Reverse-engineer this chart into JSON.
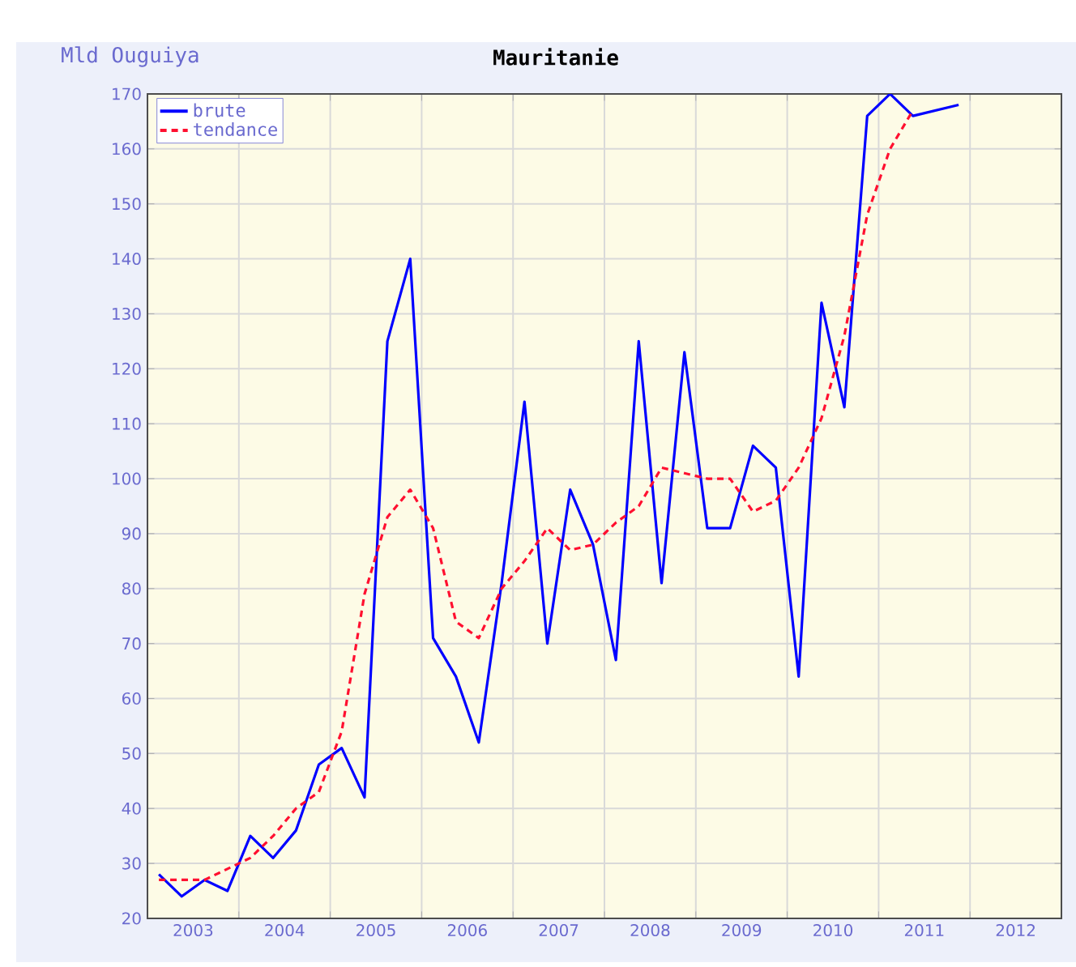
{
  "chart_data": {
    "type": "line",
    "title": "Mauritanie",
    "ylabel": "Mld Ouguiya",
    "x": [
      2003.125,
      2003.375,
      2003.625,
      2003.875,
      2004.125,
      2004.375,
      2004.625,
      2004.875,
      2005.125,
      2005.375,
      2005.625,
      2005.875,
      2006.125,
      2006.375,
      2006.625,
      2006.875,
      2007.125,
      2007.375,
      2007.625,
      2007.875,
      2008.125,
      2008.375,
      2008.625,
      2008.875,
      2009.125,
      2009.375,
      2009.625,
      2009.875,
      2010.125,
      2010.375,
      2010.625,
      2010.875,
      2011.125,
      2011.375,
      2011.625,
      2011.875
    ],
    "series": [
      {
        "name": "brute",
        "color": "#0000ff",
        "line_style": "solid",
        "values": [
          28,
          24,
          27,
          25,
          35,
          31,
          36,
          48,
          51,
          42,
          125,
          140,
          71,
          64,
          52,
          81,
          114,
          70,
          98,
          88,
          67,
          125,
          81,
          123,
          91,
          91,
          106,
          102,
          64,
          132,
          113,
          166,
          170,
          166,
          167,
          168
        ]
      },
      {
        "name": "tendance",
        "color": "#ff1030",
        "line_style": "dashed",
        "values": [
          27,
          27,
          27,
          29,
          31,
          35,
          40,
          43,
          54,
          79,
          93,
          98,
          91,
          74,
          71,
          80,
          85,
          91,
          87,
          88,
          92,
          95,
          102,
          101,
          100,
          100,
          94,
          96,
          102,
          111,
          126,
          148,
          160,
          167,
          null,
          null
        ]
      }
    ],
    "xlim": [
      2003,
      2013
    ],
    "xticks": [
      {
        "value": 2004,
        "label": null
      },
      {
        "value": 2005,
        "label": null
      },
      {
        "value": 2006,
        "label": null
      },
      {
        "value": 2007,
        "label": null
      },
      {
        "value": 2008,
        "label": null
      },
      {
        "value": 2009,
        "label": null
      },
      {
        "value": 2010,
        "label": null
      },
      {
        "value": 2011,
        "label": null
      },
      {
        "value": 2012,
        "label": null
      },
      {
        "value": 2003.5,
        "label": "2003"
      },
      {
        "value": 2004.5,
        "label": "2004"
      },
      {
        "value": 2005.5,
        "label": "2005"
      },
      {
        "value": 2006.5,
        "label": "2006"
      },
      {
        "value": 2007.5,
        "label": "2007"
      },
      {
        "value": 2008.5,
        "label": "2008"
      },
      {
        "value": 2009.5,
        "label": "2009"
      },
      {
        "value": 2010.5,
        "label": "2010"
      },
      {
        "value": 2011.5,
        "label": "2011"
      },
      {
        "value": 2012.5,
        "label": "2012"
      }
    ],
    "ylim": [
      20,
      170
    ],
    "yticks": [
      20,
      30,
      40,
      50,
      60,
      70,
      80,
      90,
      100,
      110,
      120,
      130,
      140,
      150,
      160,
      170
    ],
    "grid": true,
    "legend": "top left"
  }
}
